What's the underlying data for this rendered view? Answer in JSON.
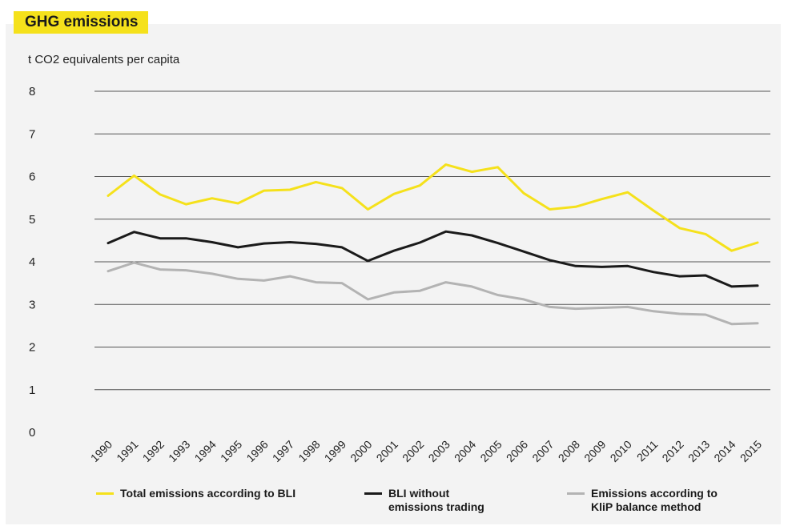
{
  "title": "GHG emissions",
  "unit_label": "t CO2 equivalents per capita",
  "colors": {
    "title_bg": "#f5e11b",
    "total": "#f5e11b",
    "bli": "#1a1a1a",
    "klip": "#b3b3b3",
    "grid": "#555555",
    "panel": "#f3f3f3"
  },
  "chart_data": {
    "type": "line",
    "x": [
      "1990",
      "1991",
      "1992",
      "1993",
      "1994",
      "1995",
      "1996",
      "1997",
      "1998",
      "1999",
      "2000",
      "2001",
      "2002",
      "2003",
      "2004",
      "2005",
      "2006",
      "2007",
      "2008",
      "2009",
      "2010",
      "2011",
      "2012",
      "2013",
      "2014",
      "2015"
    ],
    "yticks": [
      0,
      1,
      2,
      3,
      4,
      5,
      6,
      7,
      8
    ],
    "ylim": [
      0,
      8
    ],
    "ylabel": "t CO2 equivalents per capita",
    "grid": true,
    "legend_position": "bottom",
    "series": [
      {
        "name": "Total emissions according to BLI",
        "color_key": "total",
        "values": [
          5.55,
          6.02,
          5.58,
          5.35,
          5.49,
          5.37,
          5.67,
          5.69,
          5.87,
          5.73,
          5.23,
          5.59,
          5.79,
          6.28,
          6.11,
          6.22,
          5.61,
          5.23,
          5.29,
          5.47,
          5.63,
          5.2,
          4.79,
          4.65,
          4.26,
          4.45
        ]
      },
      {
        "name": "BLI without\nemissions trading",
        "color_key": "bli",
        "values": [
          4.44,
          4.7,
          4.55,
          4.55,
          4.46,
          4.34,
          4.43,
          4.46,
          4.42,
          4.34,
          4.02,
          4.26,
          4.45,
          4.71,
          4.62,
          4.44,
          4.24,
          4.04,
          3.9,
          3.88,
          3.9,
          3.76,
          3.66,
          3.68,
          3.42,
          3.44
        ]
      },
      {
        "name": "Emissions according to\nKliP balance method",
        "color_key": "klip",
        "values": [
          3.78,
          3.98,
          3.82,
          3.8,
          3.72,
          3.6,
          3.56,
          3.66,
          3.52,
          3.5,
          3.12,
          3.28,
          3.32,
          3.52,
          3.42,
          3.22,
          3.12,
          2.94,
          2.9,
          2.92,
          2.94,
          2.84,
          2.78,
          2.76,
          2.54,
          2.56
        ]
      }
    ]
  }
}
